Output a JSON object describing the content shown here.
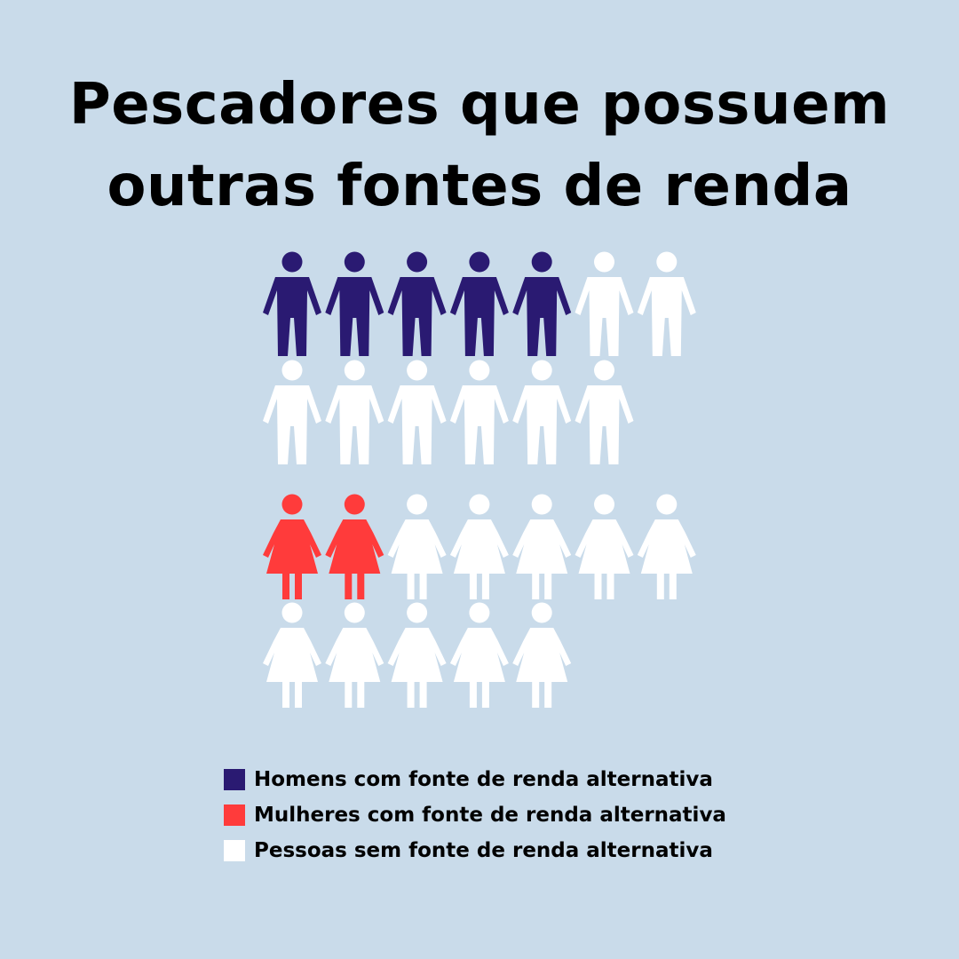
{
  "title_lines": [
    "Pescadores que possuem",
    "outras fontes de renda"
  ],
  "colors": {
    "background": "#c9dbea",
    "men_alt": "#2a1a72",
    "women_alt": "#ff3b3b",
    "none": "#ffffff"
  },
  "chart_data": {
    "type": "pictogram",
    "title": "Pescadores que possuem outras fontes de renda",
    "groups": [
      {
        "name": "Homens",
        "icon": "man-icon",
        "total": 13,
        "with_alternative_income": 5
      },
      {
        "name": "Mulheres",
        "icon": "woman-icon",
        "total": 12,
        "with_alternative_income": 2
      }
    ],
    "legend": [
      {
        "label": "Homens com fonte de renda alternativa",
        "color": "#2a1a72"
      },
      {
        "label": "Mulheres com fonte de renda alternativa",
        "color": "#ff3b3b"
      },
      {
        "label": "Pessoas sem fonte de renda alternativa",
        "color": "#ffffff"
      }
    ]
  }
}
